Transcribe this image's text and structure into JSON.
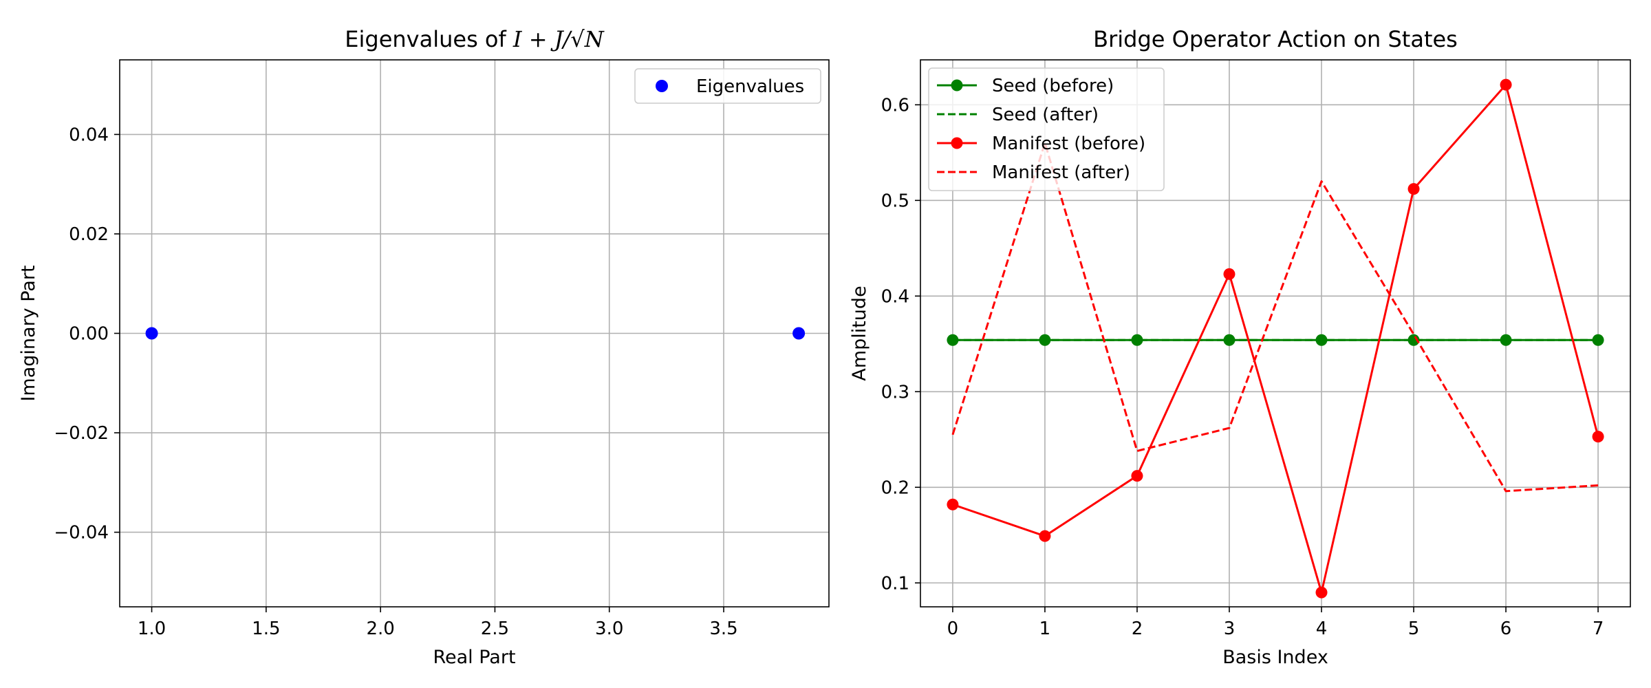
{
  "chart_data": [
    {
      "type": "scatter",
      "title_prefix": "Eigenvalues of ",
      "title_math": "I + J/√N",
      "xlabel": "Real Part",
      "ylabel": "Imaginary Part",
      "xlim": [
        0.86,
        3.96
      ],
      "ylim": [
        -0.055,
        0.055
      ],
      "xticks": [
        1.0,
        1.5,
        2.0,
        2.5,
        3.0,
        3.5
      ],
      "xtick_labels": [
        "1.0",
        "1.5",
        "2.0",
        "2.5",
        "3.0",
        "3.5"
      ],
      "yticks": [
        -0.04,
        -0.02,
        0.0,
        0.02,
        0.04
      ],
      "ytick_labels": [
        "−0.04",
        "−0.02",
        "0.00",
        "0.02",
        "0.04"
      ],
      "grid": true,
      "legend_position": "upper-right",
      "series": [
        {
          "name": "Eigenvalues",
          "color": "#0000ff",
          "x": [
            1.0,
            3.828
          ],
          "y": [
            0.0,
            0.0
          ]
        }
      ]
    },
    {
      "type": "line",
      "title": "Bridge Operator Action on States",
      "xlabel": "Basis Index",
      "ylabel": "Amplitude",
      "xlim": [
        -0.35,
        7.35
      ],
      "ylim": [
        0.075,
        0.647
      ],
      "xticks": [
        0,
        1,
        2,
        3,
        4,
        5,
        6,
        7
      ],
      "xtick_labels": [
        "0",
        "1",
        "2",
        "3",
        "4",
        "5",
        "6",
        "7"
      ],
      "yticks": [
        0.1,
        0.2,
        0.3,
        0.4,
        0.5,
        0.6
      ],
      "ytick_labels": [
        "0.1",
        "0.2",
        "0.3",
        "0.4",
        "0.5",
        "0.6"
      ],
      "grid": true,
      "legend_position": "upper-left",
      "x": [
        0,
        1,
        2,
        3,
        4,
        5,
        6,
        7
      ],
      "series": [
        {
          "name": "Seed (before)",
          "color": "#008000",
          "style": "solid",
          "marker": true,
          "values": [
            0.354,
            0.354,
            0.354,
            0.354,
            0.354,
            0.354,
            0.354,
            0.354
          ]
        },
        {
          "name": "Seed (after)",
          "color": "#008000",
          "style": "dashed",
          "marker": false,
          "values": [
            0.354,
            0.354,
            0.354,
            0.354,
            0.354,
            0.354,
            0.354,
            0.354
          ]
        },
        {
          "name": "Manifest (before)",
          "color": "#ff0000",
          "style": "solid",
          "marker": true,
          "values": [
            0.182,
            0.149,
            0.212,
            0.423,
            0.09,
            0.512,
            0.621,
            0.253
          ]
        },
        {
          "name": "Manifest (after)",
          "color": "#ff0000",
          "style": "dashed",
          "marker": false,
          "values": [
            0.255,
            0.56,
            0.238,
            0.262,
            0.52,
            0.36,
            0.196,
            0.202
          ]
        }
      ]
    }
  ]
}
